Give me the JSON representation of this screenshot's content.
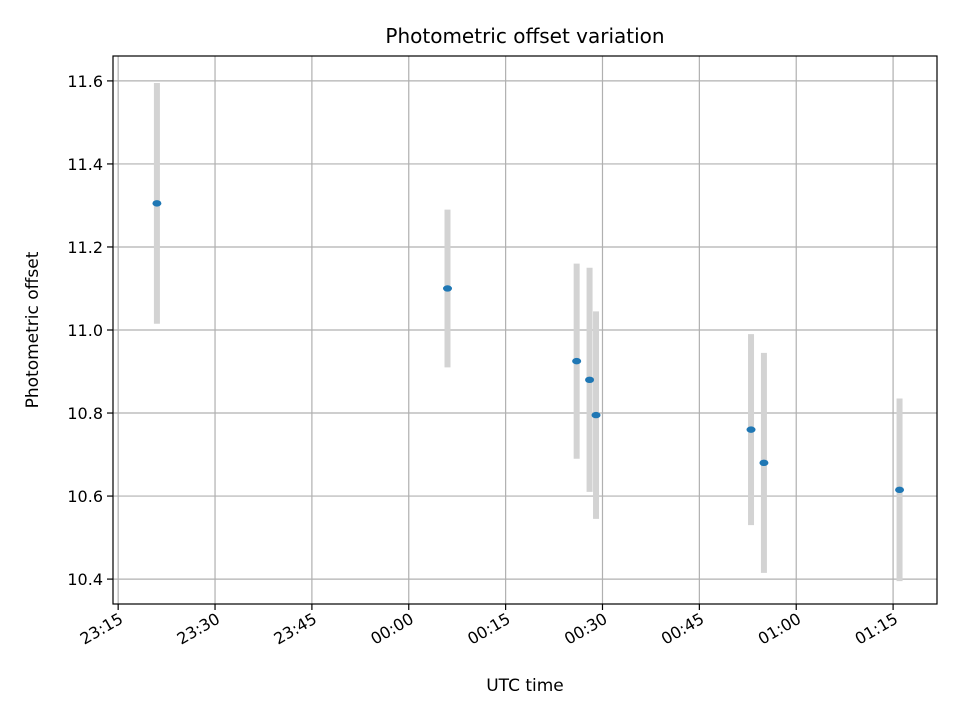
{
  "chart_data": {
    "type": "scatter",
    "title": "Photometric offset variation",
    "xlabel": "UTC time",
    "ylabel": "Photometric offset",
    "x_ticks": [
      "23:15",
      "23:30",
      "23:45",
      "00:00",
      "00:15",
      "00:30",
      "00:45",
      "01:00",
      "01:15"
    ],
    "x_tick_minutes": [
      -45,
      -30,
      -15,
      0,
      15,
      30,
      45,
      60,
      75
    ],
    "xlim_minutes": [
      -45.8,
      81.8
    ],
    "y_ticks": [
      10.4,
      10.6,
      10.8,
      11.0,
      11.2,
      11.4,
      11.6
    ],
    "ylim": [
      10.34,
      11.66
    ],
    "grid": true,
    "colors": {
      "point": "#1f77b4",
      "errorbar": "#d3d3d3",
      "grid": "#b0b0b0"
    },
    "points": [
      {
        "time": "23:21",
        "y": 11.305,
        "yerr": 0.29
      },
      {
        "time": "00:06",
        "y": 11.1,
        "yerr": 0.19
      },
      {
        "time": "00:26",
        "y": 10.925,
        "yerr": 0.235
      },
      {
        "time": "00:28",
        "y": 10.88,
        "yerr": 0.27
      },
      {
        "time": "00:29",
        "y": 10.795,
        "yerr": 0.25
      },
      {
        "time": "00:53",
        "y": 10.76,
        "yerr": 0.23
      },
      {
        "time": "00:55",
        "y": 10.68,
        "yerr": 0.265
      },
      {
        "time": "01:16",
        "y": 10.615,
        "yerr": 0.22
      }
    ]
  }
}
